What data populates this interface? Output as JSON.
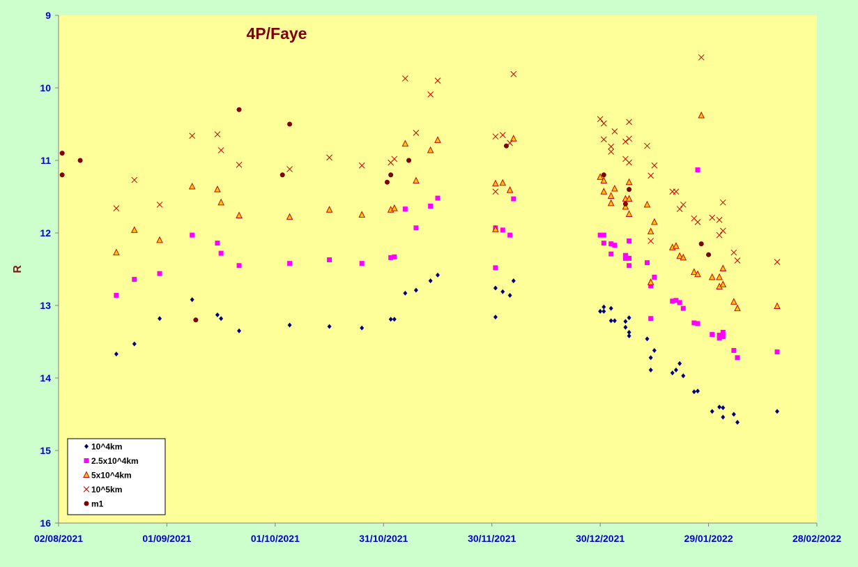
{
  "chart_data": {
    "type": "scatter",
    "title": "4P/Faye",
    "xlabel": "",
    "ylabel": "R",
    "x_axis": {
      "type": "date",
      "min": "2021-08-02",
      "max": "2022-02-28",
      "ticks": [
        "02/08/2021",
        "01/09/2021",
        "01/10/2021",
        "31/10/2021",
        "30/11/2021",
        "30/12/2021",
        "29/01/2022",
        "28/02/2022"
      ]
    },
    "y_axis": {
      "inverted": true,
      "min": 9,
      "max": 16,
      "ticks": [
        "9",
        "10",
        "11",
        "12",
        "13",
        "14",
        "15",
        "16"
      ]
    },
    "grid": false,
    "legend_position": "bottom-left",
    "colors": {
      "outer_background": "#ccffcc",
      "plot_background": "#ffff99",
      "axis": "#7f7f7f",
      "tick_labels": "#0000cc",
      "title": "#800000"
    },
    "series": [
      {
        "name": "10^4km",
        "marker": "diamond",
        "color": "#000080",
        "points": [
          [
            "2021-08-18",
            13.67
          ],
          [
            "2021-08-23",
            13.53
          ],
          [
            "2021-08-30",
            13.18
          ],
          [
            "2021-09-08",
            12.92
          ],
          [
            "2021-09-15",
            13.13
          ],
          [
            "2021-09-16",
            13.18
          ],
          [
            "2021-09-21",
            13.35
          ],
          [
            "2021-10-05",
            13.27
          ],
          [
            "2021-10-16",
            13.29
          ],
          [
            "2021-10-25",
            13.31
          ],
          [
            "2021-11-02",
            13.19
          ],
          [
            "2021-11-03",
            13.19
          ],
          [
            "2021-11-06",
            12.83
          ],
          [
            "2021-11-09",
            12.79
          ],
          [
            "2021-11-13",
            12.66
          ],
          [
            "2021-11-15",
            12.58
          ],
          [
            "2021-12-01",
            12.76
          ],
          [
            "2021-12-01",
            13.16
          ],
          [
            "2021-12-03",
            12.81
          ],
          [
            "2021-12-05",
            12.86
          ],
          [
            "2021-12-06",
            12.66
          ],
          [
            "2021-12-30",
            13.08
          ],
          [
            "2021-12-31",
            13.08
          ],
          [
            "2021-12-31",
            13.02
          ],
          [
            "2022-01-02",
            13.21
          ],
          [
            "2022-01-02",
            13.04
          ],
          [
            "2022-01-03",
            13.21
          ],
          [
            "2022-01-06",
            13.22
          ],
          [
            "2022-01-06",
            13.3
          ],
          [
            "2022-01-07",
            13.17
          ],
          [
            "2022-01-07",
            13.37
          ],
          [
            "2022-01-07",
            13.42
          ],
          [
            "2022-01-12",
            13.46
          ],
          [
            "2022-01-13",
            13.72
          ],
          [
            "2022-01-13",
            13.89
          ],
          [
            "2022-01-14",
            13.62
          ],
          [
            "2022-01-19",
            13.93
          ],
          [
            "2022-01-20",
            13.89
          ],
          [
            "2022-01-21",
            13.8
          ],
          [
            "2022-01-22",
            13.97
          ],
          [
            "2022-01-25",
            14.19
          ],
          [
            "2022-01-26",
            14.18
          ],
          [
            "2022-01-30",
            14.46
          ],
          [
            "2022-02-01",
            14.4
          ],
          [
            "2022-02-02",
            14.41
          ],
          [
            "2022-02-02",
            14.54
          ],
          [
            "2022-02-05",
            14.5
          ],
          [
            "2022-02-06",
            14.61
          ],
          [
            "2022-02-17",
            14.46
          ]
        ]
      },
      {
        "name": "2.5x10^4km",
        "marker": "square",
        "color": "#ff00ff",
        "points": [
          [
            "2021-08-18",
            12.86
          ],
          [
            "2021-08-23",
            12.64
          ],
          [
            "2021-08-30",
            12.56
          ],
          [
            "2021-09-08",
            12.03
          ],
          [
            "2021-09-15",
            12.14
          ],
          [
            "2021-09-16",
            12.28
          ],
          [
            "2021-09-21",
            12.45
          ],
          [
            "2021-10-05",
            12.42
          ],
          [
            "2021-10-16",
            12.37
          ],
          [
            "2021-10-25",
            12.42
          ],
          [
            "2021-11-02",
            12.34
          ],
          [
            "2021-11-03",
            12.33
          ],
          [
            "2021-11-06",
            11.67
          ],
          [
            "2021-11-09",
            11.93
          ],
          [
            "2021-11-13",
            11.63
          ],
          [
            "2021-11-15",
            11.52
          ],
          [
            "2021-12-01",
            11.93
          ],
          [
            "2021-12-01",
            12.48
          ],
          [
            "2021-12-03",
            11.96
          ],
          [
            "2021-12-05",
            12.03
          ],
          [
            "2021-12-06",
            11.53
          ],
          [
            "2021-12-30",
            12.03
          ],
          [
            "2021-12-31",
            12.14
          ],
          [
            "2021-12-31",
            12.03
          ],
          [
            "2022-01-02",
            12.15
          ],
          [
            "2022-01-02",
            12.29
          ],
          [
            "2022-01-03",
            12.17
          ],
          [
            "2022-01-06",
            12.31
          ],
          [
            "2022-01-06",
            12.35
          ],
          [
            "2022-01-07",
            12.11
          ],
          [
            "2022-01-07",
            12.45
          ],
          [
            "2022-01-07",
            12.35
          ],
          [
            "2022-01-12",
            12.41
          ],
          [
            "2022-01-13",
            12.73
          ],
          [
            "2022-01-13",
            13.18
          ],
          [
            "2022-01-14",
            12.61
          ],
          [
            "2022-01-19",
            12.94
          ],
          [
            "2022-01-20",
            12.93
          ],
          [
            "2022-01-21",
            12.96
          ],
          [
            "2022-01-22",
            13.04
          ],
          [
            "2022-01-25",
            13.24
          ],
          [
            "2022-01-26",
            13.25
          ],
          [
            "2022-01-26",
            11.13
          ],
          [
            "2022-01-30",
            13.4
          ],
          [
            "2022-02-01",
            13.41
          ],
          [
            "2022-02-01",
            13.45
          ],
          [
            "2022-02-02",
            13.37
          ],
          [
            "2022-02-02",
            13.43
          ],
          [
            "2022-02-05",
            13.62
          ],
          [
            "2022-02-06",
            13.72
          ],
          [
            "2022-02-17",
            13.64
          ]
        ]
      },
      {
        "name": "5x10^4km",
        "marker": "triangle",
        "color": "#ffcc00",
        "stroke": "#cc0000",
        "points": [
          [
            "2021-08-18",
            12.27
          ],
          [
            "2021-08-23",
            11.96
          ],
          [
            "2021-08-30",
            12.1
          ],
          [
            "2021-09-08",
            11.36
          ],
          [
            "2021-09-15",
            11.4
          ],
          [
            "2021-09-16",
            11.58
          ],
          [
            "2021-09-21",
            11.76
          ],
          [
            "2021-10-05",
            11.78
          ],
          [
            "2021-10-16",
            11.68
          ],
          [
            "2021-10-25",
            11.75
          ],
          [
            "2021-11-02",
            11.68
          ],
          [
            "2021-11-03",
            11.66
          ],
          [
            "2021-11-06",
            10.77
          ],
          [
            "2021-11-09",
            11.28
          ],
          [
            "2021-11-13",
            10.86
          ],
          [
            "2021-11-15",
            10.72
          ],
          [
            "2021-12-01",
            11.32
          ],
          [
            "2021-12-01",
            11.95
          ],
          [
            "2021-12-03",
            11.31
          ],
          [
            "2021-12-05",
            11.41
          ],
          [
            "2021-12-06",
            10.7
          ],
          [
            "2021-12-30",
            11.23
          ],
          [
            "2021-12-31",
            11.28
          ],
          [
            "2021-12-31",
            11.43
          ],
          [
            "2022-01-02",
            11.49
          ],
          [
            "2022-01-02",
            11.59
          ],
          [
            "2022-01-03",
            11.39
          ],
          [
            "2022-01-06",
            11.53
          ],
          [
            "2022-01-06",
            11.64
          ],
          [
            "2022-01-07",
            11.3
          ],
          [
            "2022-01-07",
            11.53
          ],
          [
            "2022-01-07",
            11.74
          ],
          [
            "2022-01-12",
            11.61
          ],
          [
            "2022-01-13",
            11.98
          ],
          [
            "2022-01-13",
            12.68
          ],
          [
            "2022-01-14",
            11.85
          ],
          [
            "2022-01-19",
            12.2
          ],
          [
            "2022-01-20",
            12.18
          ],
          [
            "2022-01-21",
            12.32
          ],
          [
            "2022-01-22",
            12.34
          ],
          [
            "2022-01-25",
            12.54
          ],
          [
            "2022-01-26",
            12.57
          ],
          [
            "2022-01-27",
            10.38
          ],
          [
            "2022-01-30",
            12.61
          ],
          [
            "2022-02-01",
            12.61
          ],
          [
            "2022-02-01",
            12.74
          ],
          [
            "2022-02-02",
            12.71
          ],
          [
            "2022-02-02",
            12.49
          ],
          [
            "2022-02-05",
            12.95
          ],
          [
            "2022-02-06",
            13.04
          ],
          [
            "2022-02-17",
            13.01
          ]
        ]
      },
      {
        "name": "10^5km",
        "marker": "x",
        "color": "#cc0000",
        "points": [
          [
            "2021-08-18",
            11.66
          ],
          [
            "2021-08-23",
            11.27
          ],
          [
            "2021-08-30",
            11.61
          ],
          [
            "2021-09-08",
            10.66
          ],
          [
            "2021-09-15",
            10.64
          ],
          [
            "2021-09-16",
            10.86
          ],
          [
            "2021-09-21",
            11.06
          ],
          [
            "2021-10-05",
            11.12
          ],
          [
            "2021-10-16",
            10.96
          ],
          [
            "2021-10-25",
            11.07
          ],
          [
            "2021-11-02",
            11.03
          ],
          [
            "2021-11-03",
            10.98
          ],
          [
            "2021-11-06",
            9.87
          ],
          [
            "2021-11-09",
            10.62
          ],
          [
            "2021-11-13",
            10.09
          ],
          [
            "2021-11-15",
            9.9
          ],
          [
            "2021-12-01",
            10.67
          ],
          [
            "2021-12-01",
            11.43
          ],
          [
            "2021-12-03",
            10.65
          ],
          [
            "2021-12-05",
            10.76
          ],
          [
            "2021-12-06",
            9.81
          ],
          [
            "2021-12-30",
            10.43
          ],
          [
            "2021-12-31",
            10.49
          ],
          [
            "2021-12-31",
            10.71
          ],
          [
            "2022-01-02",
            10.81
          ],
          [
            "2022-01-02",
            10.88
          ],
          [
            "2022-01-03",
            10.6
          ],
          [
            "2022-01-06",
            10.74
          ],
          [
            "2022-01-06",
            10.98
          ],
          [
            "2022-01-07",
            10.47
          ],
          [
            "2022-01-07",
            10.7
          ],
          [
            "2022-01-07",
            11.03
          ],
          [
            "2022-01-12",
            10.8
          ],
          [
            "2022-01-13",
            11.21
          ],
          [
            "2022-01-13",
            12.11
          ],
          [
            "2022-01-14",
            11.07
          ],
          [
            "2022-01-19",
            11.43
          ],
          [
            "2022-01-20",
            11.43
          ],
          [
            "2022-01-21",
            11.67
          ],
          [
            "2022-01-22",
            11.61
          ],
          [
            "2022-01-25",
            11.8
          ],
          [
            "2022-01-26",
            11.85
          ],
          [
            "2022-01-27",
            9.58
          ],
          [
            "2022-01-30",
            11.79
          ],
          [
            "2022-02-01",
            11.82
          ],
          [
            "2022-02-01",
            12.03
          ],
          [
            "2022-02-02",
            11.97
          ],
          [
            "2022-02-02",
            11.58
          ],
          [
            "2022-02-05",
            12.27
          ],
          [
            "2022-02-06",
            12.38
          ],
          [
            "2022-02-17",
            12.4
          ]
        ]
      },
      {
        "name": "m1",
        "marker": "circle",
        "color": "#800000",
        "points": [
          [
            "2021-08-03",
            10.9
          ],
          [
            "2021-08-03",
            11.2
          ],
          [
            "2021-08-08",
            11.0
          ],
          [
            "2021-09-09",
            13.2
          ],
          [
            "2021-09-21",
            10.3
          ],
          [
            "2021-10-03",
            11.2
          ],
          [
            "2021-10-05",
            10.5
          ],
          [
            "2021-11-01",
            11.3
          ],
          [
            "2021-11-02",
            11.2
          ],
          [
            "2021-11-07",
            11.0
          ],
          [
            "2021-12-04",
            10.8
          ],
          [
            "2021-12-31",
            11.2
          ],
          [
            "2022-01-06",
            11.6
          ],
          [
            "2022-01-07",
            11.4
          ],
          [
            "2022-01-27",
            12.15
          ],
          [
            "2022-01-29",
            12.3
          ]
        ]
      }
    ]
  }
}
